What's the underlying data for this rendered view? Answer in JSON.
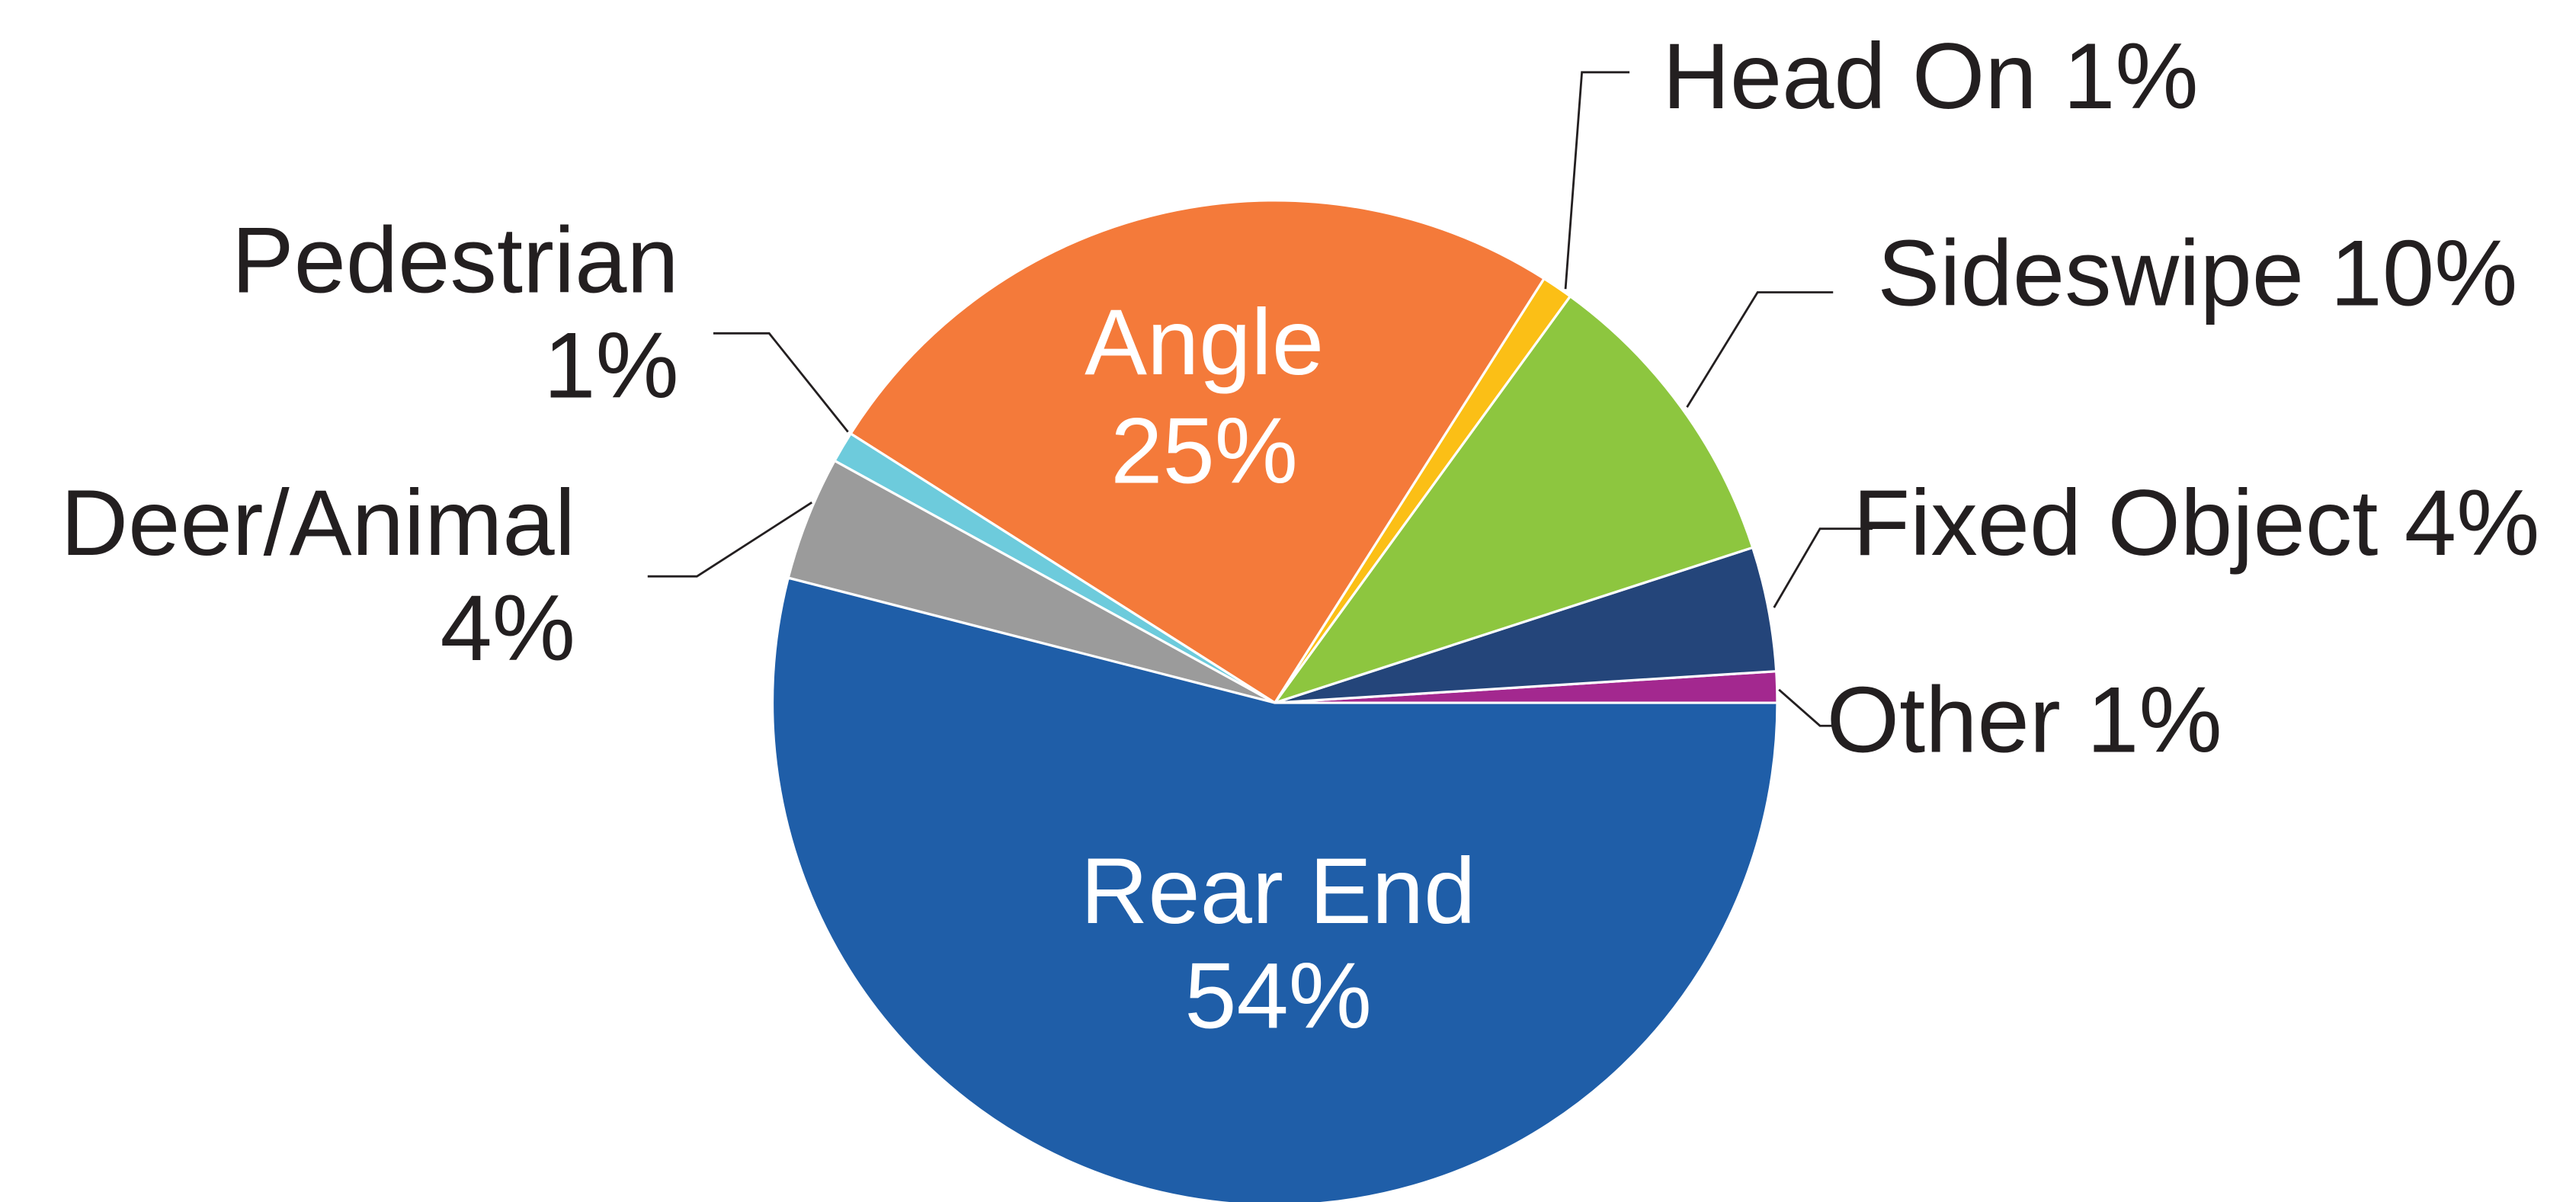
{
  "chart_data": {
    "type": "pie",
    "categories": [
      "Other",
      "Fixed Object",
      "Sideswipe",
      "Head On",
      "Angle",
      "Pedestrian",
      "Deer/Animal",
      "Rear End"
    ],
    "values": [
      1,
      4,
      10,
      1,
      25,
      1,
      4,
      54
    ],
    "value_labels": [
      "1%",
      "4%",
      "10%",
      "1%",
      "25%",
      "1%",
      "4%",
      "54%"
    ],
    "colors": [
      "#a3288f",
      "#24457a",
      "#8dc63f",
      "#fbbf16",
      "#f47a3a",
      "#6dcbdc",
      "#9b9b9b",
      "#1f5ea8"
    ]
  }
}
